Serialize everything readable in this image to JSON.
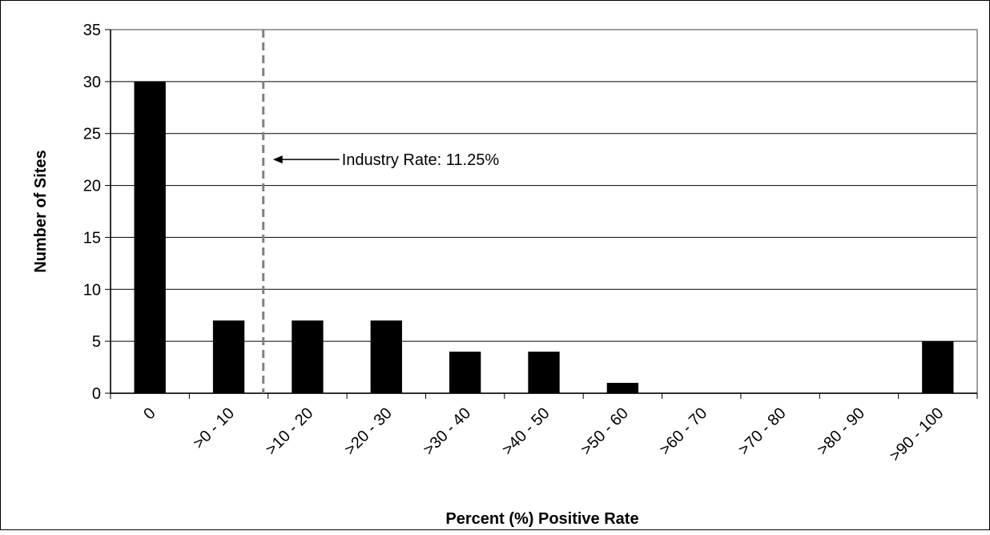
{
  "chart_data": {
    "type": "bar",
    "categories": [
      "0",
      ">0 - 10",
      ">10 - 20",
      ">20 - 30",
      ">30 - 40",
      ">40 - 50",
      ">50 - 60",
      ">60 - 70",
      ">70 - 80",
      ">80 - 90",
      ">90 - 100"
    ],
    "values": [
      30,
      7,
      7,
      7,
      4,
      4,
      1,
      0,
      0,
      0,
      5
    ],
    "xlabel": "Percent (%) Positive Rate",
    "ylabel": "Number of Sites",
    "ylim": [
      0,
      35
    ],
    "yticks": [
      0,
      5,
      10,
      15,
      20,
      25,
      30,
      35
    ],
    "grid": true,
    "bar_color": "#000000",
    "reference_line": {
      "x_value": 11.25,
      "label": "Industry Rate: 11.25%",
      "style": "dashed",
      "color": "#808080"
    }
  }
}
